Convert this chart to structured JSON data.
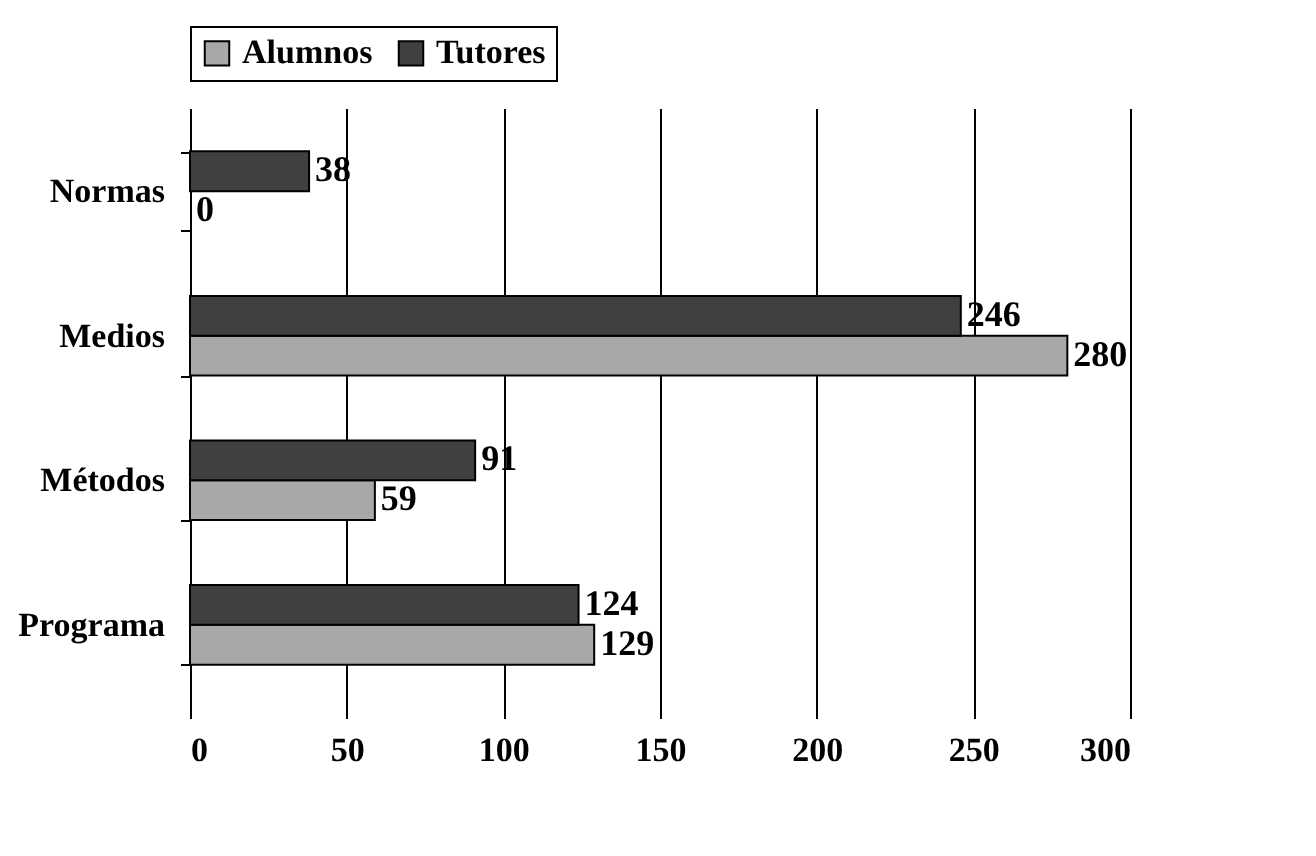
{
  "chart_data": {
    "type": "bar",
    "orientation": "horizontal",
    "categories": [
      "Normas",
      "Medios",
      "Métodos",
      "Programa"
    ],
    "series": [
      {
        "name": "Alumnos",
        "color": "#a8a8a8",
        "values": [
          0,
          280,
          59,
          129
        ]
      },
      {
        "name": "Tutores",
        "color": "#404040",
        "values": [
          38,
          246,
          91,
          124
        ]
      }
    ],
    "xlim": [
      0,
      300
    ],
    "xticks": [
      0,
      50,
      100,
      150,
      200,
      250,
      300
    ],
    "grid": "x",
    "legend": "top",
    "data_labels": true
  }
}
